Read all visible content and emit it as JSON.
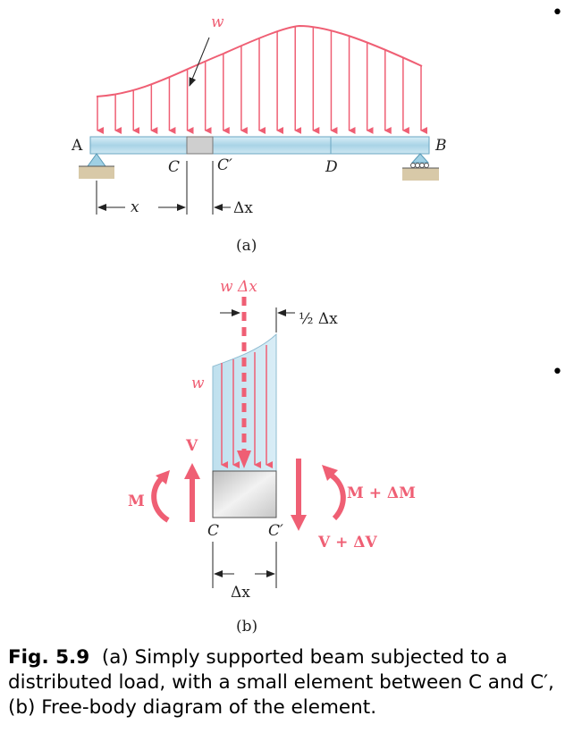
{
  "diagram_a": {
    "load_label": "w",
    "point_a": "A",
    "point_b": "B",
    "point_c": "C",
    "point_c_prime": "C′",
    "point_d": "D",
    "dim_x": "x",
    "dim_dx": "Δx",
    "panel_label": "(a)"
  },
  "diagram_b": {
    "resultant_label": "w Δx",
    "half_dx": "½ Δx",
    "load_label": "w",
    "shear_left": "V",
    "moment_left": "M",
    "moment_right": "M + ΔM",
    "shear_right": "V + ΔV",
    "point_c": "C",
    "point_c_prime": "C′",
    "dim_dx": "Δx",
    "panel_label": "(b)"
  },
  "caption": {
    "label": "Fig. 5.9",
    "text": "(a) Simply supported beam subjected to a distributed load, with a small element between C and C′, (b) Free-body diagram of the element."
  },
  "colors": {
    "load": "#ef5f74",
    "beam": "#bfe0ee",
    "element": "#d4d4d4"
  }
}
